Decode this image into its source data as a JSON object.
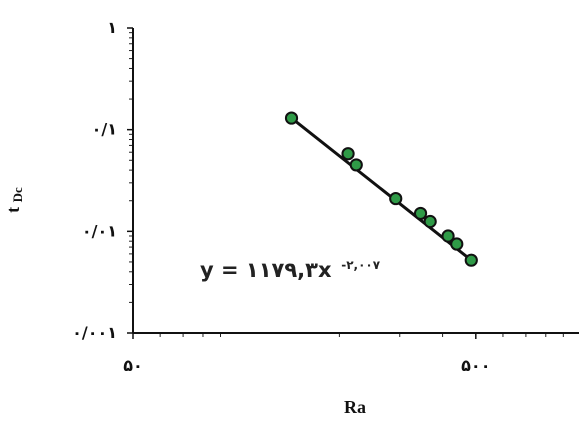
{
  "chart_data": {
    "type": "scatter",
    "xscale": "log",
    "yscale": "log",
    "xlim": [
      50,
      1000
    ],
    "ylim": [
      0.001,
      1
    ],
    "xlabel": "Ra",
    "ylabel": "t",
    "ylabel_subscript": "Dc",
    "x_tick_values": [
      50,
      500
    ],
    "x_tick_labels": [
      "۵۰",
      "۵۰۰"
    ],
    "y_tick_values": [
      0.001,
      0.01,
      0.1,
      1
    ],
    "y_tick_labels": [
      "۰/۰۰۱",
      "۰/۰۱",
      "۰/۱",
      "۱"
    ],
    "grid": false,
    "legend": false,
    "series": [
      {
        "values": [
          {
            "x": 145,
            "y": 0.13
          },
          {
            "x": 212,
            "y": 0.058
          },
          {
            "x": 224,
            "y": 0.045
          },
          {
            "x": 292,
            "y": 0.021
          },
          {
            "x": 345,
            "y": 0.015
          },
          {
            "x": 368,
            "y": 0.0125
          },
          {
            "x": 415,
            "y": 0.009
          },
          {
            "x": 440,
            "y": 0.0075
          },
          {
            "x": 485,
            "y": 0.0052
          }
        ],
        "marker_fill": "#2f9a47",
        "marker_stroke": "#111111"
      }
    ],
    "fit": {
      "x_range": [
        145,
        485
      ],
      "equation_text": "y = ۱۱۷۹,۳x",
      "equation_exponent": "-۲,۰۰۷",
      "line_color": "#111111"
    }
  }
}
